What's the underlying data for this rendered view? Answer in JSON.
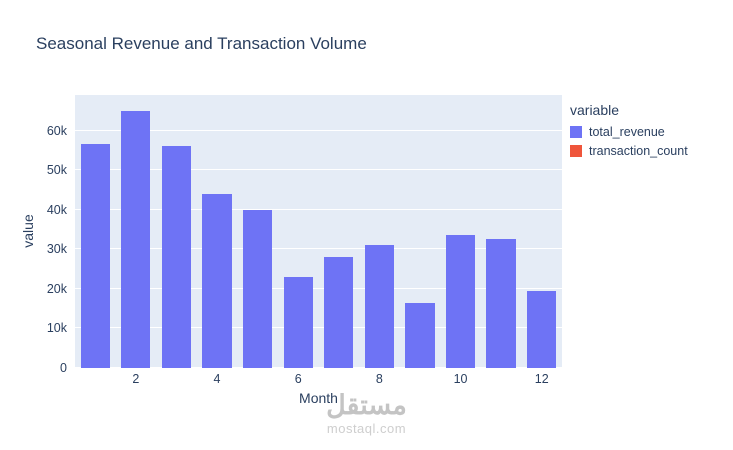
{
  "title": "Seasonal Revenue and Transaction Volume",
  "watermark": {
    "arabic": "مستقل",
    "latin": "mostaql.com"
  },
  "legend": {
    "title": "variable",
    "items": [
      {
        "label": "total_revenue",
        "color": "#6e73f5"
      },
      {
        "label": "transaction_count",
        "color": "#EF553B"
      }
    ]
  },
  "chart_data": {
    "type": "bar",
    "title": "Seasonal Revenue and Transaction Volume",
    "xlabel": "Month",
    "ylabel": "value",
    "categories": [
      1,
      2,
      3,
      4,
      5,
      6,
      7,
      8,
      9,
      10,
      11,
      12
    ],
    "series": [
      {
        "name": "total_revenue",
        "color": "#6e73f5",
        "values": [
          56500,
          65000,
          56000,
          44000,
          40000,
          23000,
          28000,
          31000,
          16500,
          33500,
          32500,
          19500
        ]
      },
      {
        "name": "transaction_count",
        "color": "#EF553B",
        "values": [
          0,
          0,
          0,
          0,
          0,
          0,
          0,
          0,
          0,
          0,
          0,
          0
        ]
      }
    ],
    "ylim": [
      0,
      69000
    ],
    "yticks": {
      "values": [
        0,
        10000,
        20000,
        30000,
        40000,
        50000,
        60000
      ],
      "labels": [
        "0",
        "10k",
        "20k",
        "30k",
        "40k",
        "50k",
        "60k"
      ]
    },
    "xticks": {
      "values": [
        2,
        4,
        6,
        8,
        10,
        12
      ],
      "labels": [
        "2",
        "4",
        "6",
        "8",
        "10",
        "12"
      ]
    },
    "grid": true,
    "legend_position": "right",
    "plot_bg": "#e5ecf6"
  }
}
